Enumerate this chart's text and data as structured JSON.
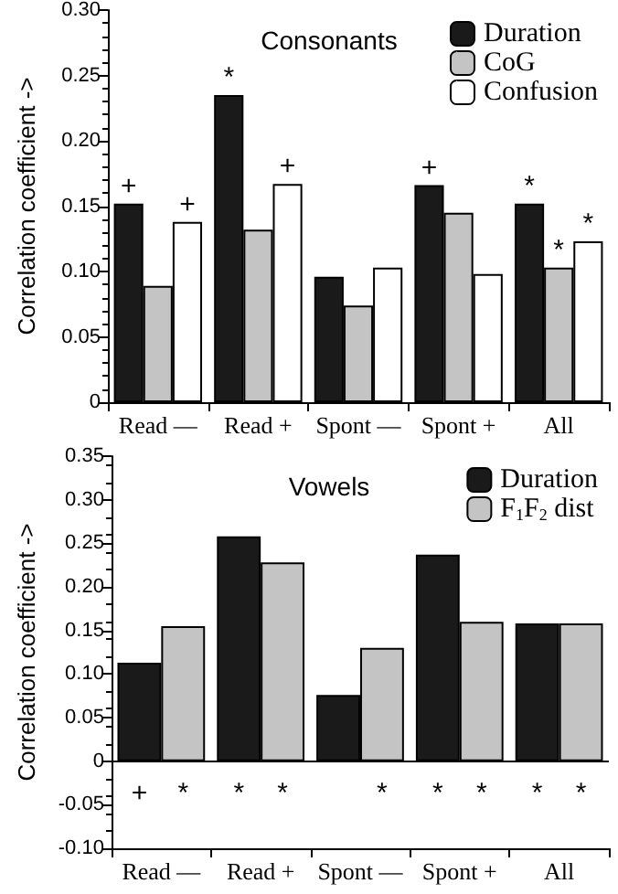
{
  "chart_data": [
    {
      "type": "bar",
      "title": "Consonants",
      "ylabel": "Correlation coefficient ->",
      "categories": [
        "Read —",
        "Read +",
        "Spont —",
        "Spont +",
        "All"
      ],
      "series": [
        {
          "name": "Duration",
          "color": "#1a1a1a",
          "values": [
            0.152,
            0.235,
            0.096,
            0.166,
            0.152
          ],
          "value_labels": [
            "+",
            "*",
            null,
            "+",
            "*"
          ]
        },
        {
          "name": "CoG",
          "color": "#c4c4c4",
          "values": [
            0.089,
            0.132,
            0.074,
            0.145,
            0.103
          ],
          "value_labels": [
            null,
            null,
            null,
            null,
            "*"
          ]
        },
        {
          "name": "Confusion",
          "color": "#ffffff",
          "values": [
            0.138,
            0.167,
            0.103,
            0.098,
            0.123
          ],
          "value_labels": [
            "+",
            "+",
            null,
            null,
            "*"
          ]
        }
      ],
      "ylim": [
        0,
        0.3
      ],
      "yticks": [
        0,
        0.05,
        {
          "value": 0.1,
          "label": "0.10"
        },
        0.15,
        {
          "value": 0.2,
          "label": "0.20"
        },
        0.25,
        {
          "value": 0.3,
          "label": "0.30"
        }
      ],
      "grid": false,
      "legend": "top right"
    },
    {
      "type": "bar",
      "title": "Vowels",
      "ylabel": "Correlation coefficient ->",
      "categories": [
        "Read —",
        "Read +",
        "Spont —",
        "Spont +",
        "All"
      ],
      "series": [
        {
          "name": "Duration",
          "color": "#1a1a1a",
          "values": [
            0.113,
            0.258,
            0.076,
            0.237,
            0.158
          ],
          "value_labels": [
            "+",
            "*",
            null,
            "*",
            "*"
          ]
        },
        {
          "name": "F$_{1}$F$_{2}$ dist",
          "color": "#c4c4c4",
          "values": [
            0.155,
            0.228,
            0.13,
            0.16,
            0.158
          ],
          "value_labels": [
            "*",
            "*",
            "*",
            "*",
            "*"
          ]
        }
      ],
      "ylim": [
        -0.1,
        0.35
      ],
      "yticks": [
        {
          "value": -0.1,
          "label": "-0.10"
        },
        -0.05,
        0,
        0.05,
        {
          "value": 0.1,
          "label": "0.10"
        },
        0.15,
        {
          "value": 0.2,
          "label": "0.20"
        },
        0.25,
        {
          "value": 0.3,
          "label": "0.30"
        },
        0.35
      ],
      "ref_lines": [
        {
          "axis": "y",
          "value": 0
        }
      ],
      "grid": false,
      "legend": "top right"
    }
  ]
}
